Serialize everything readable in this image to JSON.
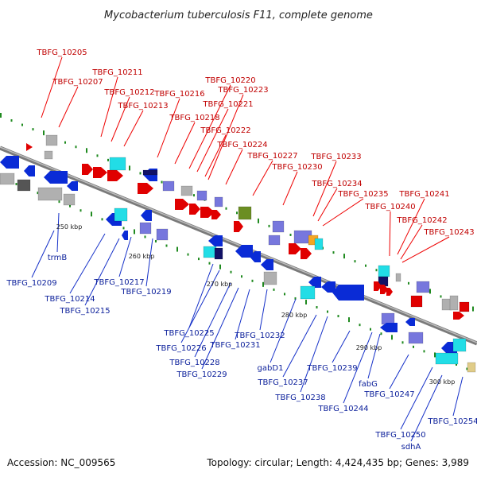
{
  "title": "Mycobacterium tuberculosis F11, complete genome",
  "footer": {
    "accession": "Accession: NC_009565",
    "summary": "Topology: circular; Length: 4,424,435 bp; Genes: 3,989"
  },
  "ticks": [
    "250 kbp",
    "260 kbp",
    "270 kbp",
    "280 kbp",
    "290 kbp",
    "300 kbp"
  ],
  "labels_top": [
    "TBFG_10205",
    "TBFG_10207",
    "TBFG_10211",
    "TBFG_10212",
    "TBFG_10213",
    "TBFG_10216",
    "TBFG_10218",
    "TBFG_10220",
    "TBFG_10221",
    "TBFG_10222",
    "TBFG_10223",
    "TBFG_10224",
    "TBFG_10227",
    "TBFG_10230",
    "TBFG_10233",
    "TBFG_10234",
    "TBFG_10235",
    "TBFG_10240",
    "TBFG_10241",
    "TBFG_10242",
    "TBFG_10243"
  ],
  "labels_bottom": [
    "trmB",
    "TBFG_10209",
    "TBFG_10214",
    "TBFG_10215",
    "TBFG_10217",
    "TBFG_10219",
    "TBFG_10225",
    "TBFG_10226",
    "TBFG_10228",
    "TBFG_10229",
    "TBFG_10231",
    "TBFG_10232",
    "gabD1",
    "TBFG_10237",
    "TBFG_10238",
    "TBFG_10239",
    "TBFG_10244",
    "fabG",
    "TBFG_10247",
    "TBFG_10250",
    "sdhA",
    "TBFG_10254"
  ],
  "colors": {
    "forward": "#e00000",
    "reverse": "#0a2bd6",
    "cyan": "#22dde6",
    "purple": "#7777dd",
    "gray": "#b0b0b0",
    "olive": "#6b8e23",
    "orange": "#f5a623",
    "tan": "#e0cc88",
    "backbone": "#888888",
    "tick_dots": "#1f8a1f"
  }
}
